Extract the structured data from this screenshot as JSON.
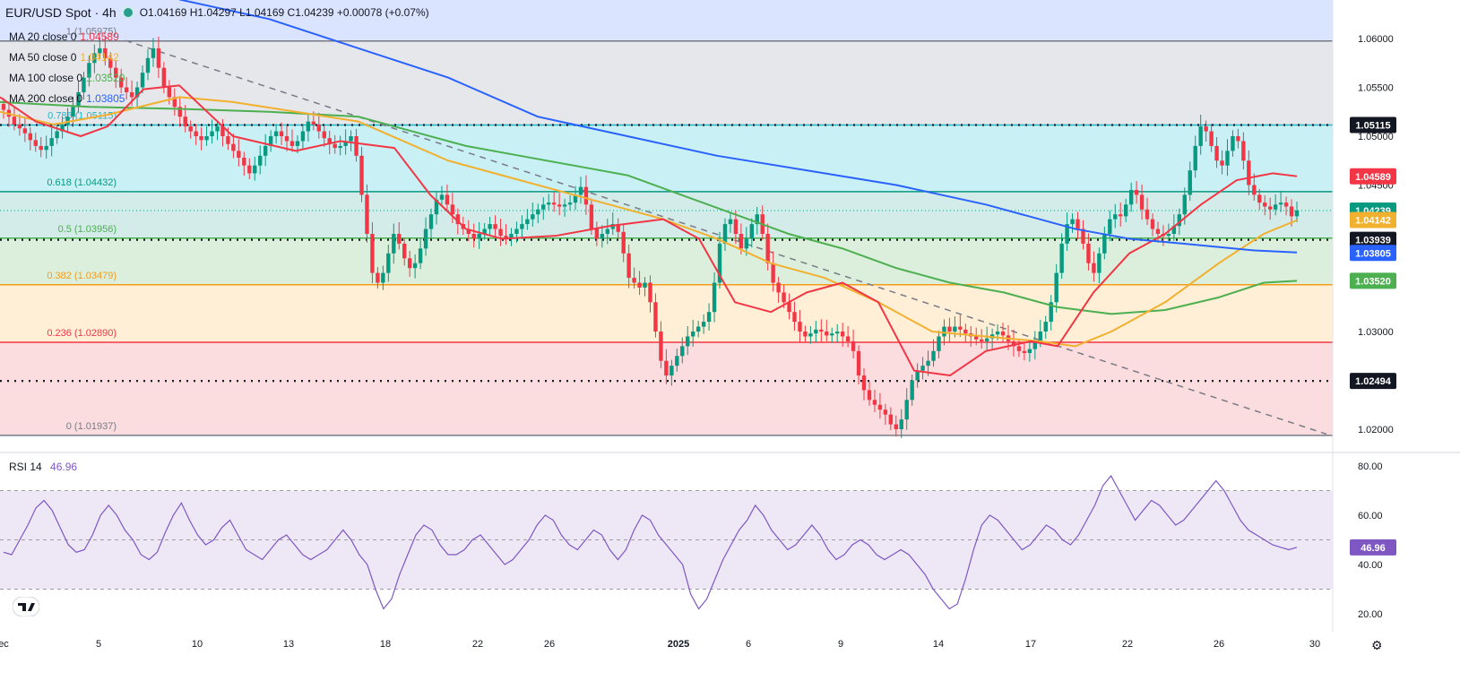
{
  "header": {
    "symbol": "EUR/USD Spot · 4h",
    "ohlc": "O1.04169 H1.04297 L1.04169 C1.04239 +0.00078 (+0.07%)"
  },
  "moving_averages": [
    {
      "label": "MA 20 close 0",
      "value": "1.04589",
      "color": "#f23645"
    },
    {
      "label": "MA 50 close 0",
      "value": "1.04142",
      "color": "#f2b02f"
    },
    {
      "label": "MA 100 close 0",
      "value": "1.03520",
      "color": "#4caf50"
    },
    {
      "label": "MA 200 close 0",
      "value": "1.03805",
      "color": "#2962ff"
    }
  ],
  "fib_labels": [
    {
      "label": "1 (1.05975)",
      "price": 1.05975
    },
    {
      "label": "0.786 (1.05115)",
      "price": 1.05115
    },
    {
      "label": "0.618 (1.04432)",
      "price": 1.04432
    },
    {
      "label": "0.5 (1.03956)",
      "price": 1.03956
    },
    {
      "label": "0.382 (1.03479)",
      "price": 1.03479
    },
    {
      "label": "0.236 (1.02890)",
      "price": 1.0289
    },
    {
      "label": "0 (1.01937)",
      "price": 1.01937
    }
  ],
  "price_axis_ticks": [
    "1.06000",
    "1.05500",
    "1.05000",
    "1.04500",
    "1.03500",
    "1.03000",
    "1.02500",
    "1.02000"
  ],
  "price_badges": [
    {
      "text": "1.05115",
      "color": "#131722",
      "price": 1.05115
    },
    {
      "text": "1.04589",
      "color": "#f23645",
      "price": 1.04589
    },
    {
      "text": "1.04239",
      "color": "#089981",
      "price": 1.04239
    },
    {
      "text": "1.04142",
      "color": "#f2b02f",
      "price": 1.04142
    },
    {
      "text": "1.03939",
      "color": "#131722",
      "price": 1.03939
    },
    {
      "text": "1.03805",
      "color": "#2962ff",
      "price": 1.03805
    },
    {
      "text": "1.03520",
      "color": "#4caf50",
      "price": 1.0352
    },
    {
      "text": "1.02494",
      "color": "#131722",
      "price": 1.02494
    }
  ],
  "rsi": {
    "label": "RSI 14",
    "value": "46.96",
    "ticks": [
      "80.00",
      "60.00",
      "40.00",
      "20.00"
    ]
  },
  "time_axis": [
    "ec",
    "5",
    "10",
    "13",
    "18",
    "22",
    "26",
    "2025",
    "6",
    "9",
    "14",
    "17",
    "22",
    "26",
    "30"
  ],
  "chart_data": {
    "type": "candlestick",
    "title": "EUR/USD Spot · 4h",
    "ylim": [
      1.0188,
      1.0625
    ],
    "horizontal_levels": [
      1.05115,
      1.03939,
      1.02494
    ],
    "trendline": {
      "from": [
        "Dec 6",
        1.0598
      ],
      "to": [
        "Jan 29",
        1.0195
      ]
    },
    "closes": [
      1.0527,
      1.052,
      1.0512,
      1.0508,
      1.0503,
      1.0496,
      1.049,
      1.0486,
      1.049,
      1.0498,
      1.0505,
      1.0512,
      1.052,
      1.053,
      1.0545,
      1.056,
      1.0575,
      1.0585,
      1.059,
      1.058,
      1.057,
      1.056,
      1.055,
      1.0545,
      1.054,
      1.055,
      1.0565,
      1.058,
      1.059,
      1.057,
      1.055,
      1.054,
      1.053,
      1.052,
      1.051,
      1.0505,
      1.05,
      1.0496,
      1.05,
      1.0505,
      1.051,
      1.05,
      1.0492,
      1.0485,
      1.0478,
      1.047,
      1.0462,
      1.047,
      1.048,
      1.049,
      1.05,
      1.0505,
      1.05,
      1.0495,
      1.049,
      1.0495,
      1.0505,
      1.0515,
      1.0512,
      1.0505,
      1.0498,
      1.0492,
      1.0488,
      1.049,
      1.0495,
      1.05,
      1.048,
      1.044,
      1.04,
      1.036,
      1.035,
      1.036,
      1.038,
      1.04,
      1.039,
      1.0375,
      1.0365,
      1.037,
      1.0385,
      1.0405,
      1.042,
      1.0435,
      1.044,
      1.043,
      1.042,
      1.041,
      1.0405,
      1.04,
      1.0395,
      1.04,
      1.0405,
      1.041,
      1.0405,
      1.0398,
      1.0395,
      1.04,
      1.0405,
      1.041,
      1.0415,
      1.042,
      1.0425,
      1.043,
      1.0432,
      1.043,
      1.0428,
      1.043,
      1.0432,
      1.044,
      1.0448,
      1.043,
      1.0405,
      1.0395,
      1.04,
      1.0405,
      1.041,
      1.0402,
      1.038,
      1.0355,
      1.035,
      1.0345,
      1.035,
      1.033,
      1.03,
      1.027,
      1.0255,
      1.0265,
      1.0275,
      1.0285,
      1.0295,
      1.03,
      1.0305,
      1.031,
      1.032,
      1.035,
      1.039,
      1.041,
      1.0415,
      1.04,
      1.0385,
      1.0395,
      1.041,
      1.042,
      1.04,
      1.037,
      1.035,
      1.034,
      1.033,
      1.032,
      1.031,
      1.03,
      1.0295,
      1.0298,
      1.0302,
      1.03,
      1.0296,
      1.0298,
      1.03,
      1.0295,
      1.029,
      1.028,
      1.0255,
      1.024,
      1.023,
      1.0225,
      1.022,
      1.0215,
      1.0205,
      1.02,
      1.021,
      1.023,
      1.025,
      1.026,
      1.0265,
      1.027,
      1.028,
      1.0295,
      1.0305,
      1.03,
      1.0305,
      1.0302,
      1.0298,
      1.0295,
      1.0292,
      1.029,
      1.0293,
      1.0297,
      1.03,
      1.0296,
      1.029,
      1.0285,
      1.028,
      1.0278,
      1.0282,
      1.029,
      1.03,
      1.031,
      1.033,
      1.036,
      1.039,
      1.041,
      1.0415,
      1.0405,
      1.039,
      1.037,
      1.036,
      1.038,
      1.04,
      1.0415,
      1.042,
      1.0418,
      1.043,
      1.0445,
      1.044,
      1.0425,
      1.0415,
      1.0405,
      1.04,
      1.0398,
      1.04,
      1.0408,
      1.042,
      1.044,
      1.0465,
      1.049,
      1.051,
      1.0505,
      1.049,
      1.0475,
      1.047,
      1.0485,
      1.05,
      1.0495,
      1.0475,
      1.045,
      1.044,
      1.0432,
      1.0428,
      1.0425,
      1.043,
      1.0432,
      1.0428,
      1.0418,
      1.0424
    ],
    "ma20": [
      [
        0,
        1.054
      ],
      [
        40,
        1.0515
      ],
      [
        90,
        1.05
      ],
      [
        120,
        1.051
      ],
      [
        160,
        1.0548
      ],
      [
        200,
        1.0552
      ],
      [
        260,
        1.05
      ],
      [
        330,
        1.0485
      ],
      [
        380,
        1.0495
      ],
      [
        440,
        1.0488
      ],
      [
        480,
        1.044
      ],
      [
        520,
        1.0405
      ],
      [
        560,
        1.0395
      ],
      [
        620,
        1.0398
      ],
      [
        680,
        1.0408
      ],
      [
        740,
        1.0415
      ],
      [
        780,
        1.0395
      ],
      [
        820,
        1.033
      ],
      [
        860,
        1.032
      ],
      [
        900,
        1.034
      ],
      [
        940,
        1.035
      ],
      [
        980,
        1.033
      ],
      [
        1020,
        1.026
      ],
      [
        1060,
        1.0255
      ],
      [
        1100,
        1.028
      ],
      [
        1150,
        1.029
      ],
      [
        1180,
        1.0285
      ],
      [
        1220,
        1.034
      ],
      [
        1260,
        1.038
      ],
      [
        1300,
        1.04
      ],
      [
        1340,
        1.043
      ],
      [
        1380,
        1.0455
      ],
      [
        1420,
        1.0462
      ],
      [
        1447,
        1.0459
      ]
    ],
    "ma50": [
      [
        0,
        1.0525
      ],
      [
        60,
        1.0512
      ],
      [
        120,
        1.0522
      ],
      [
        200,
        1.054
      ],
      [
        260,
        1.0535
      ],
      [
        330,
        1.0525
      ],
      [
        400,
        1.0515
      ],
      [
        450,
        1.0495
      ],
      [
        500,
        1.0475
      ],
      [
        560,
        1.046
      ],
      [
        620,
        1.0445
      ],
      [
        680,
        1.043
      ],
      [
        740,
        1.0415
      ],
      [
        800,
        1.0395
      ],
      [
        860,
        1.037
      ],
      [
        920,
        1.0355
      ],
      [
        980,
        1.033
      ],
      [
        1040,
        1.03
      ],
      [
        1100,
        1.0295
      ],
      [
        1160,
        1.029
      ],
      [
        1200,
        1.0285
      ],
      [
        1240,
        1.03
      ],
      [
        1300,
        1.033
      ],
      [
        1360,
        1.037
      ],
      [
        1410,
        1.04
      ],
      [
        1447,
        1.0414
      ]
    ],
    "ma100": [
      [
        0,
        1.0535
      ],
      [
        100,
        1.053
      ],
      [
        200,
        1.0528
      ],
      [
        300,
        1.0525
      ],
      [
        400,
        1.052
      ],
      [
        460,
        1.0505
      ],
      [
        520,
        1.049
      ],
      [
        580,
        1.048
      ],
      [
        640,
        1.047
      ],
      [
        700,
        1.046
      ],
      [
        760,
        1.044
      ],
      [
        820,
        1.042
      ],
      [
        880,
        1.04
      ],
      [
        940,
        1.0385
      ],
      [
        1000,
        1.0365
      ],
      [
        1060,
        1.035
      ],
      [
        1120,
        1.034
      ],
      [
        1180,
        1.0325
      ],
      [
        1240,
        1.0318
      ],
      [
        1300,
        1.0322
      ],
      [
        1360,
        1.0335
      ],
      [
        1410,
        1.035
      ],
      [
        1447,
        1.0352
      ]
    ],
    "ma200": [
      [
        200,
        1.064
      ],
      [
        300,
        1.062
      ],
      [
        400,
        1.059
      ],
      [
        500,
        1.056
      ],
      [
        600,
        1.052
      ],
      [
        700,
        1.05
      ],
      [
        800,
        1.048
      ],
      [
        900,
        1.0465
      ],
      [
        1000,
        1.045
      ],
      [
        1100,
        1.043
      ],
      [
        1200,
        1.0405
      ],
      [
        1260,
        1.0395
      ],
      [
        1320,
        1.039
      ],
      [
        1400,
        1.0383
      ],
      [
        1447,
        1.0381
      ]
    ],
    "rsi_values": [
      45,
      44,
      50,
      56,
      63,
      66,
      62,
      55,
      48,
      45,
      46,
      52,
      60,
      64,
      60,
      54,
      50,
      44,
      42,
      45,
      53,
      60,
      65,
      58,
      52,
      48,
      50,
      55,
      58,
      52,
      46,
      44,
      42,
      46,
      50,
      52,
      48,
      44,
      42,
      44,
      46,
      50,
      54,
      50,
      44,
      40,
      30,
      22,
      26,
      36,
      44,
      52,
      56,
      54,
      48,
      44,
      44,
      46,
      50,
      52,
      48,
      44,
      40,
      42,
      46,
      50,
      56,
      60,
      58,
      52,
      48,
      46,
      50,
      54,
      52,
      46,
      42,
      46,
      54,
      60,
      58,
      52,
      48,
      44,
      40,
      28,
      22,
      26,
      34,
      42,
      48,
      54,
      58,
      64,
      60,
      54,
      50,
      46,
      48,
      52,
      56,
      52,
      46,
      42,
      44,
      48,
      50,
      48,
      44,
      42,
      44,
      46,
      44,
      40,
      36,
      30,
      26,
      22,
      24,
      34,
      46,
      56,
      60,
      58,
      54,
      50,
      46,
      48,
      52,
      56,
      54,
      50,
      48,
      52,
      58,
      64,
      72,
      76,
      70,
      64,
      58,
      62,
      66,
      64,
      60,
      56,
      58,
      62,
      66,
      70,
      74,
      70,
      64,
      58,
      54,
      52,
      50,
      48,
      47,
      46,
      47
    ]
  }
}
